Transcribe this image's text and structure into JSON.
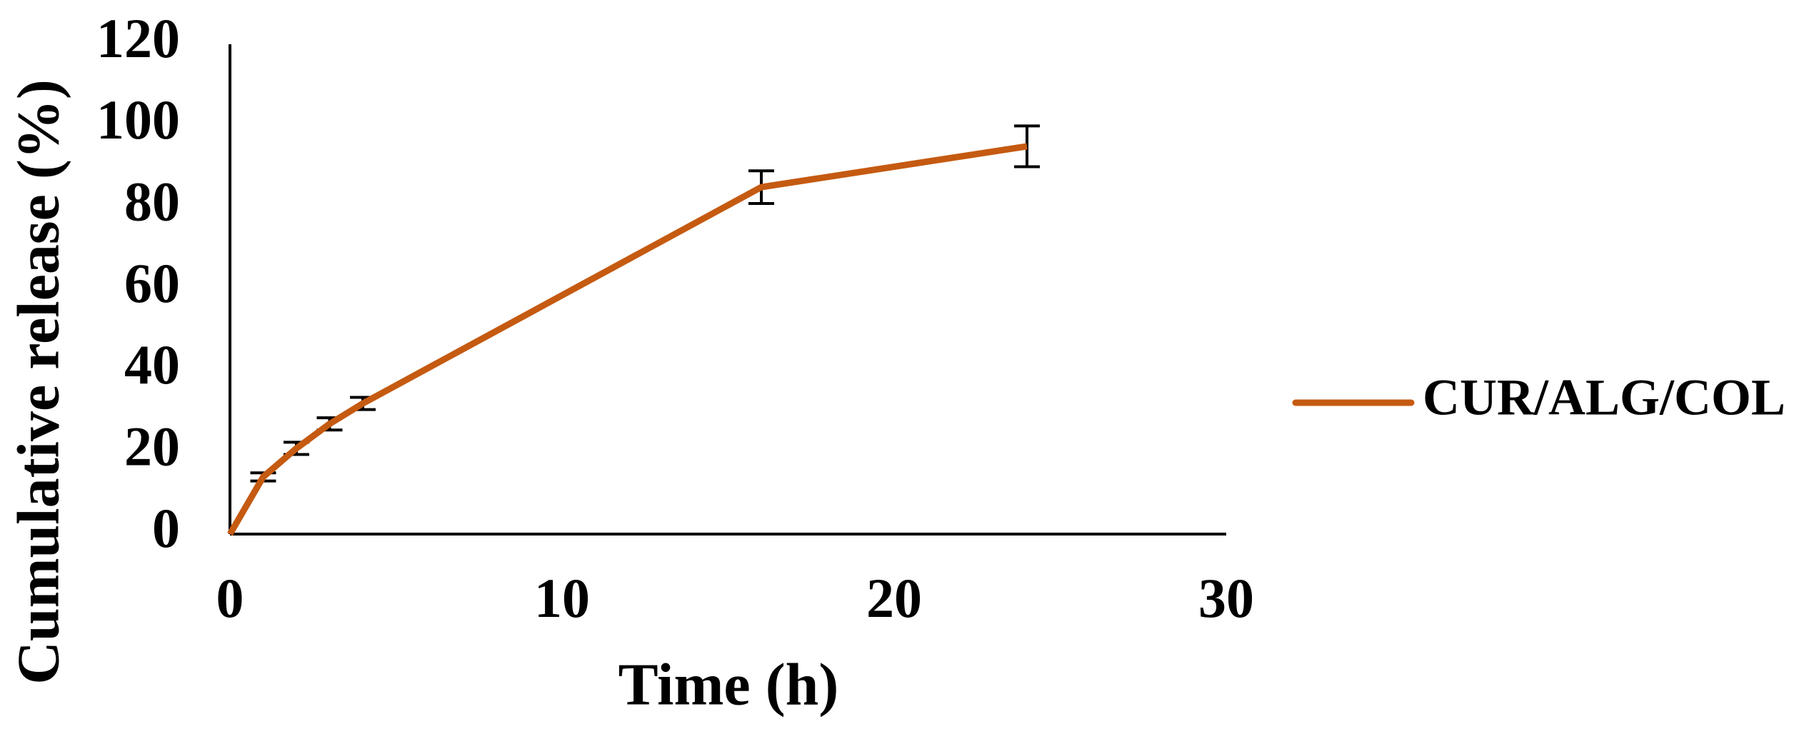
{
  "chart_data": {
    "type": "line",
    "xlabel": "Time (h)",
    "ylabel": "Cumulative release (%)",
    "x": [
      0,
      1,
      2,
      3,
      4,
      16,
      24
    ],
    "series": [
      {
        "name": "CUR/ALG/COL",
        "color": "#c55a11",
        "values": [
          0,
          14,
          21,
          27,
          32,
          85,
          95
        ],
        "errors": [
          0,
          1,
          1.5,
          1.5,
          1.5,
          4,
          5
        ]
      }
    ],
    "xlim": [
      0,
      30
    ],
    "xticks": [
      0,
      10,
      20,
      30
    ],
    "ylim": [
      0,
      120
    ],
    "yticks": [
      0,
      20,
      40,
      60,
      80,
      100,
      120
    ],
    "grid": false,
    "legend": "right"
  }
}
